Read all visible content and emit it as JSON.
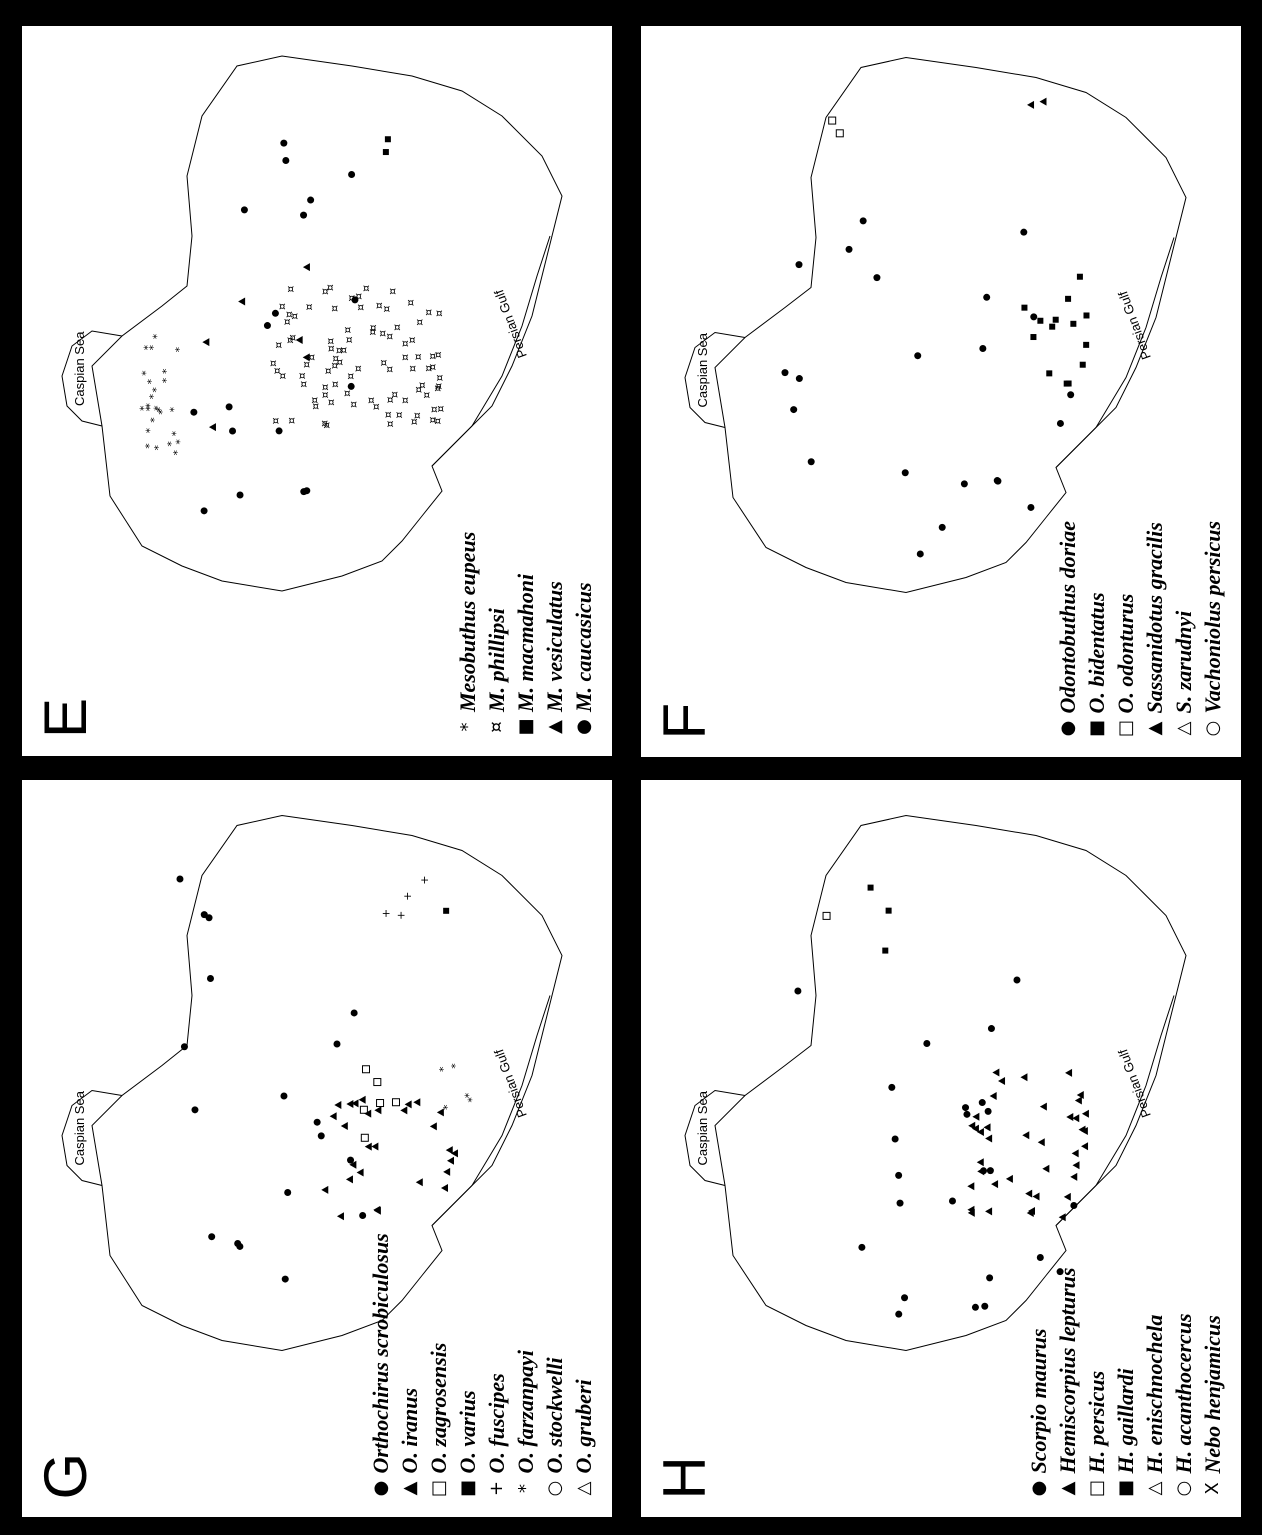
{
  "panels": {
    "e": {
      "letter": "E",
      "legend": [
        {
          "symbol": "*",
          "name": "Mesobuthus eupeus"
        },
        {
          "symbol": "¤",
          "name": "M. phillipsi"
        },
        {
          "symbol": "■",
          "name": "M. macmahoni"
        },
        {
          "symbol": "▲",
          "name": "M. vesiculatus"
        },
        {
          "symbol": "●",
          "name": "M. caucasicus"
        }
      ]
    },
    "f": {
      "letter": "F",
      "legend": [
        {
          "symbol": "●",
          "name": "Odontobuthus doriae"
        },
        {
          "symbol": "■",
          "name": "O. bidentatus"
        },
        {
          "symbol": "□",
          "name": "O. odonturus"
        },
        {
          "symbol": "▲",
          "name": "Sassanidotus gracilis"
        },
        {
          "symbol": "△",
          "name": "S. zarudnyi"
        },
        {
          "symbol": "○",
          "name": "Vachoniolus persicus"
        }
      ]
    },
    "g": {
      "letter": "G",
      "legend": [
        {
          "symbol": "●",
          "name": "Orthochirus scrobiculosus"
        },
        {
          "symbol": "▲",
          "name": "O. iranus"
        },
        {
          "symbol": "□",
          "name": "O. zagrosensis"
        },
        {
          "symbol": "■",
          "name": "O. varius"
        },
        {
          "symbol": "+",
          "name": "O. fuscipes"
        },
        {
          "symbol": "*",
          "name": "O. farzanpayi"
        },
        {
          "symbol": "○",
          "name": "O. stockwelli"
        },
        {
          "symbol": "△",
          "name": "O. gruberi"
        }
      ]
    },
    "h": {
      "letter": "H",
      "legend": [
        {
          "symbol": "●",
          "name": "Scorpio maurus"
        },
        {
          "symbol": "▲",
          "name": "Hemiscorpius lepturus"
        },
        {
          "symbol": "□",
          "name": "H. persicus"
        },
        {
          "symbol": "■",
          "name": "H. gaillardi"
        },
        {
          "symbol": "△",
          "name": "H. enischnochela"
        },
        {
          "symbol": "○",
          "name": "H. acanthocercus"
        },
        {
          "symbol": "X",
          "name": "Nebo henjamicus"
        }
      ]
    }
  },
  "map_labels": {
    "caspian": "Caspian Sea",
    "gulf": "Persian Gulf"
  },
  "colors": {
    "background": "#000000",
    "panel": "#ffffff",
    "ink": "#000000"
  }
}
